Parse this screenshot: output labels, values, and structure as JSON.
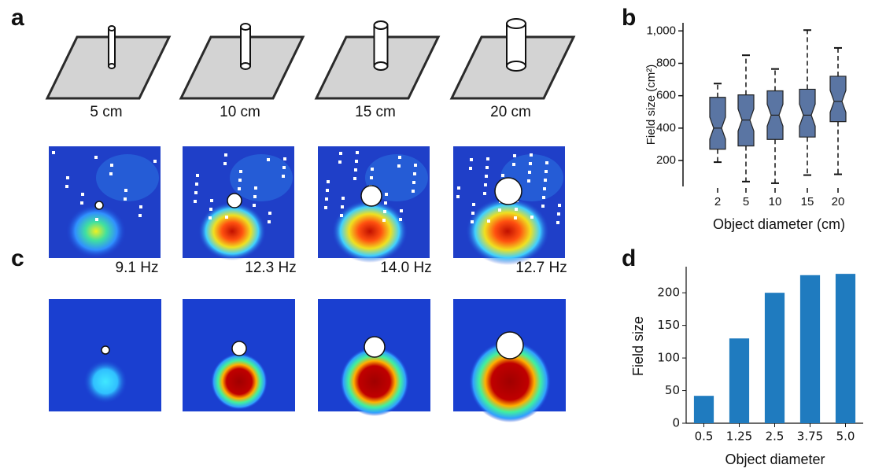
{
  "panel_letters": [
    "a",
    "b",
    "c",
    "d"
  ],
  "diameter_labels": [
    "5 cm",
    "10 cm",
    "15 cm",
    "20 cm"
  ],
  "rate_labels": [
    "9.1 Hz",
    "12.3 Hz",
    "14.0 Hz",
    "12.7 Hz"
  ],
  "chart_data": [
    {
      "type": "box",
      "y_label": "Field size (cm²)",
      "x_label": "Object diameter (cm)",
      "categories": [
        "2",
        "5",
        "10",
        "15",
        "20"
      ],
      "min": [
        190,
        70,
        60,
        110,
        115
      ],
      "q1": [
        270,
        290,
        330,
        345,
        440
      ],
      "median": [
        400,
        450,
        480,
        480,
        565
      ],
      "q3": [
        590,
        605,
        630,
        640,
        720
      ],
      "max": [
        675,
        850,
        765,
        1005,
        895
      ],
      "color": "#5a75a3",
      "ylim": [
        40,
        1050
      ],
      "yticks": [
        200,
        400,
        600,
        800,
        {
          "value": 1000,
          "label": "1,000"
        }
      ]
    },
    {
      "type": "bar",
      "y_label": "Field size",
      "x_label": "Object diameter",
      "categories": [
        "0.5",
        "1.25",
        "2.5",
        "3.75",
        "5.0"
      ],
      "values": [
        42,
        130,
        200,
        227,
        229
      ],
      "color": "#1f7bbf",
      "ylim": [
        0,
        240
      ],
      "yticks": [
        0,
        50,
        100,
        150,
        200
      ]
    }
  ]
}
